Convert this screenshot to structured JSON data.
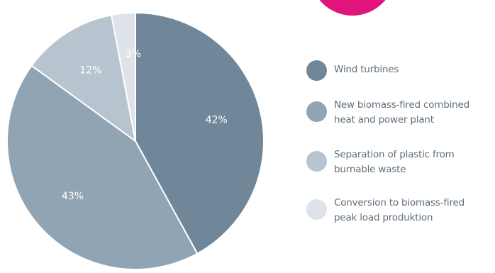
{
  "chart_data": {
    "type": "pie",
    "title": "",
    "slices": [
      {
        "label": "Wind turbines",
        "value": 42,
        "value_label": "42%",
        "color": "#6f8799"
      },
      {
        "label": "New biomass-fired combined heat and power plant",
        "value": 43,
        "value_label": "43%",
        "color": "#90a4b4"
      },
      {
        "label": "Separation of plastic from burnable waste",
        "value": 12,
        "value_label": "12%",
        "color": "#b7c4cf"
      },
      {
        "label": "Conversion to biomass-fired peak load produktion",
        "value": 3,
        "value_label": "3%",
        "color": "#dde3e8"
      }
    ],
    "legend_position": "right"
  },
  "decoration": {
    "accent_color": "#e0147b"
  },
  "legend": {
    "items": [
      {
        "lines": [
          "Wind turbines"
        ]
      },
      {
        "lines": [
          "New biomass-fired combined",
          "heat and power plant"
        ]
      },
      {
        "lines": [
          "Separation of plastic from",
          "burnable waste"
        ]
      },
      {
        "lines": [
          "Conversion to biomass-fired",
          "peak load produktion"
        ]
      }
    ]
  }
}
